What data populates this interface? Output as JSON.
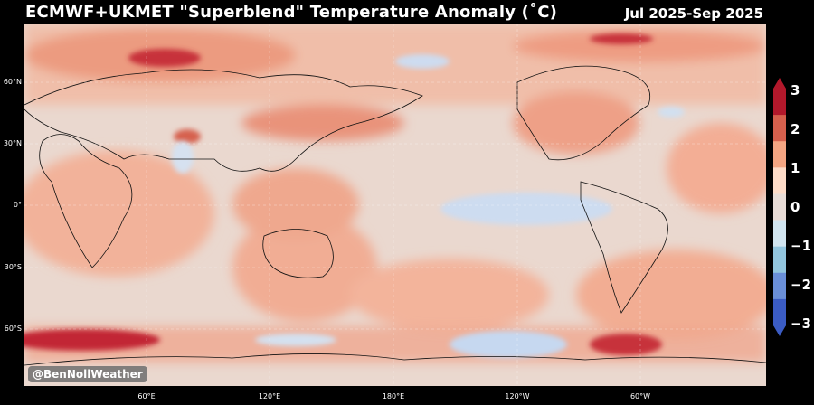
{
  "header": {
    "title": "ECMWF+UKMET \"Superblend\" Temperature Anomaly (˚C)",
    "period": "Jul 2025-Sep 2025"
  },
  "map": {
    "latitude_labels": [
      "60°N",
      "30°N",
      "0°",
      "30°S",
      "60°S"
    ],
    "longitude_labels": [
      "60°E",
      "120°E",
      "180°E",
      "120°W",
      "60°W"
    ]
  },
  "colorbar": {
    "ticks": [
      "3",
      "2",
      "1",
      "0",
      "−1",
      "−2",
      "−3"
    ],
    "colors": [
      "#b2182b",
      "#d6604d",
      "#f4a582",
      "#fddbc7",
      "#e8dcd6",
      "#d1e5f0",
      "#92c5de",
      "#6a8fd8",
      "#3b5cc4"
    ]
  },
  "credit": "@BenNollWeather"
}
